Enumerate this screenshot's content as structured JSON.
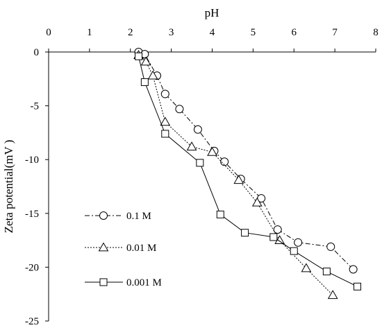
{
  "chart_data": {
    "type": "line",
    "xlabel": "pH",
    "ylabel": "Zeta potential(mV )",
    "xlim": [
      0,
      8
    ],
    "ylim": [
      -25,
      0
    ],
    "x_ticks": [
      "0",
      "1",
      "2",
      "3",
      "4",
      "5",
      "6",
      "7",
      "8"
    ],
    "y_ticks": [
      "0",
      "-5",
      "-10",
      "-15",
      "-20",
      "-25"
    ],
    "x_axis_position": "top",
    "grid": false,
    "legend_position": "bottom-left",
    "series": [
      {
        "name": "0.1 M",
        "marker": "circle",
        "line_style": "dash-dot",
        "points": [
          [
            2.2,
            0.0
          ],
          [
            2.35,
            -0.2
          ],
          [
            2.65,
            -2.2
          ],
          [
            2.85,
            -3.9
          ],
          [
            3.2,
            -5.3
          ],
          [
            3.65,
            -7.2
          ],
          [
            4.05,
            -9.2
          ],
          [
            4.3,
            -10.2
          ],
          [
            4.7,
            -11.8
          ],
          [
            5.2,
            -13.6
          ],
          [
            5.6,
            -16.5
          ],
          [
            6.1,
            -17.7
          ],
          [
            6.9,
            -18.1
          ],
          [
            7.45,
            -20.2
          ]
        ]
      },
      {
        "name": "0.01 M",
        "marker": "triangle",
        "line_style": "dotted",
        "points": [
          [
            2.2,
            -0.3
          ],
          [
            2.38,
            -0.9
          ],
          [
            2.55,
            -2.2
          ],
          [
            2.85,
            -6.5
          ],
          [
            3.5,
            -8.8
          ],
          [
            4.0,
            -9.3
          ],
          [
            4.65,
            -11.9
          ],
          [
            5.1,
            -14.0
          ],
          [
            5.65,
            -17.5
          ],
          [
            6.3,
            -20.1
          ],
          [
            6.95,
            -22.6
          ]
        ]
      },
      {
        "name": "0.001 M",
        "marker": "square",
        "line_style": "solid",
        "points": [
          [
            2.2,
            -0.4
          ],
          [
            2.35,
            -2.8
          ],
          [
            2.85,
            -7.6
          ],
          [
            3.7,
            -10.3
          ],
          [
            4.2,
            -15.1
          ],
          [
            4.8,
            -16.8
          ],
          [
            5.5,
            -17.2
          ],
          [
            6.0,
            -18.5
          ],
          [
            6.8,
            -20.4
          ],
          [
            7.55,
            -21.8
          ]
        ]
      }
    ]
  }
}
